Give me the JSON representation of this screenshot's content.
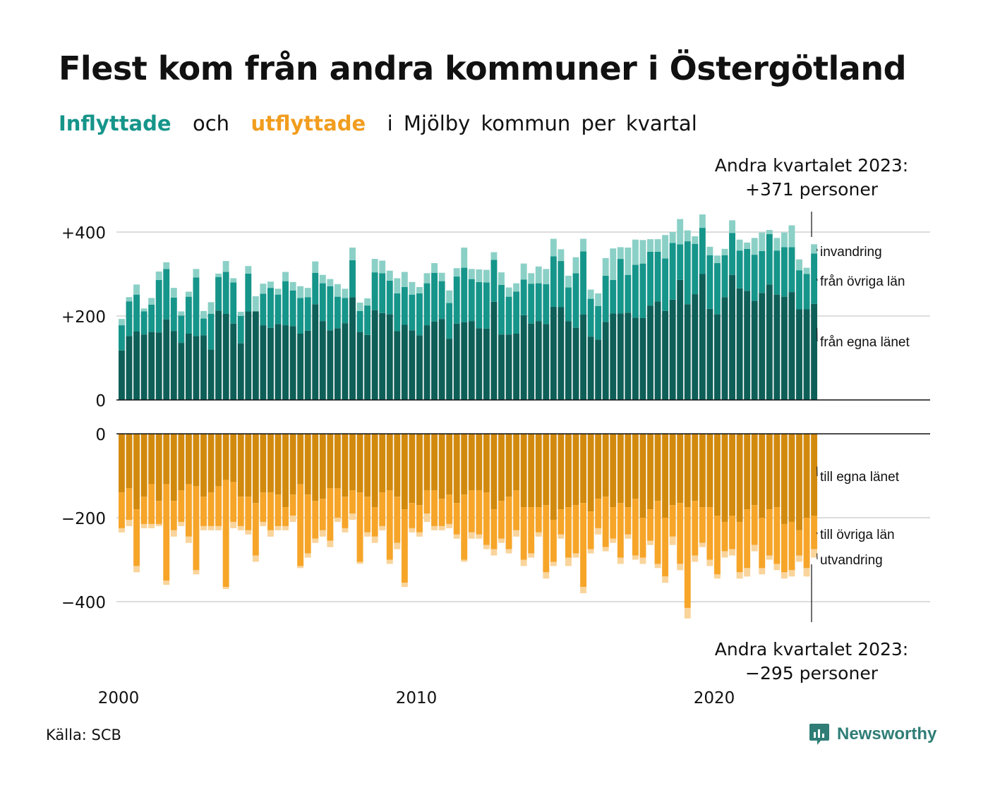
{
  "title": "Flest kom från andra kommuner i Östergötland",
  "subtitle": {
    "in_word": "Inflyttade",
    "mid": "och",
    "out_word": "utflyttade",
    "rest": "i Mjölby kommun per kvartal"
  },
  "annotation_top": {
    "line1": "Andra kvartalet 2023:",
    "line2": "+371 personer"
  },
  "annotation_bottom": {
    "line1": "Andra kvartalet 2023:",
    "line2": "−295 personer"
  },
  "source": "Källa: SCB",
  "brand": "Newsworthy",
  "colors": {
    "in_own": "#0e5f58",
    "in_other": "#16958a",
    "in_immig": "#8bd0c6",
    "out_own": "#d28a0e",
    "out_other": "#f6a529",
    "out_emig": "#f9d49b"
  },
  "chart_data": [
    {
      "type": "bar",
      "stacked": true,
      "title": "Inflyttade",
      "x_start": "2000 Q1",
      "x_end": "2023 Q2",
      "x_tick_labels": [
        "2000",
        "2010",
        "2020"
      ],
      "y_tick_labels": [
        "0",
        "+200",
        "+400"
      ],
      "ylim": [
        0,
        450
      ],
      "series_labels": [
        "från egna länet",
        "från övriga län",
        "invandring"
      ],
      "series": [
        {
          "name": "från egna länet",
          "values": [
            118,
            152,
            163,
            156,
            162,
            161,
            192,
            164,
            136,
            158,
            152,
            154,
            120,
            213,
            205,
            182,
            135,
            211,
            211,
            178,
            172,
            181,
            178,
            176,
            158,
            165,
            228,
            188,
            166,
            171,
            183,
            245,
            162,
            155,
            214,
            207,
            204,
            164,
            179,
            166,
            154,
            178,
            187,
            193,
            146,
            182,
            185,
            188,
            171,
            170,
            234,
            156,
            156,
            158,
            202,
            182,
            188,
            181,
            222,
            221,
            188,
            172,
            204,
            151,
            144,
            186,
            206,
            206,
            208,
            196,
            195,
            225,
            235,
            212,
            239,
            286,
            228,
            252,
            300,
            217,
            204,
            245,
            298,
            266,
            260,
            236,
            255,
            275,
            251,
            246,
            257,
            216,
            216,
            229
          ]
        },
        {
          "name": "från övriga län",
          "values": [
            60,
            83,
            88,
            55,
            65,
            125,
            120,
            80,
            65,
            88,
            140,
            40,
            85,
            80,
            100,
            98,
            65,
            90,
            0,
            75,
            95,
            70,
            105,
            85,
            85,
            80,
            75,
            90,
            105,
            75,
            60,
            88,
            50,
            70,
            90,
            95,
            80,
            90,
            90,
            85,
            100,
            100,
            116,
            90,
            85,
            112,
            130,
            100,
            110,
            110,
            100,
            118,
            90,
            100,
            85,
            95,
            90,
            95,
            120,
            110,
            80,
            130,
            150,
            90,
            80,
            110,
            80,
            130,
            90,
            126,
            130,
            128,
            118,
            125,
            135,
            85,
            150,
            120,
            110,
            128,
            122,
            100,
            100,
            90,
            100,
            110,
            100,
            120,
            105,
            118,
            107,
            93,
            84,
            120
          ]
        },
        {
          "name": "invandring",
          "values": [
            15,
            10,
            24,
            7,
            16,
            20,
            16,
            23,
            10,
            12,
            20,
            18,
            28,
            8,
            26,
            10,
            10,
            18,
            36,
            24,
            15,
            14,
            22,
            20,
            28,
            22,
            27,
            20,
            17,
            30,
            22,
            30,
            20,
            17,
            32,
            30,
            24,
            36,
            36,
            30,
            15,
            24,
            23,
            20,
            30,
            20,
            48,
            24,
            30,
            30,
            18,
            30,
            22,
            20,
            38,
            25,
            40,
            36,
            42,
            28,
            28,
            38,
            30,
            22,
            30,
            42,
            75,
            28,
            65,
            60,
            56,
            30,
            30,
            56,
            26,
            60,
            26,
            18,
            32,
            20,
            18,
            15,
            30,
            26,
            15,
            40,
            44,
            10,
            30,
            35,
            52,
            26,
            15,
            22
          ]
        }
      ]
    },
    {
      "type": "bar",
      "stacked": true,
      "title": "Utflyttade",
      "x_start": "2000 Q1",
      "x_end": "2023 Q2",
      "x_tick_labels": [
        "2000",
        "2010",
        "2020"
      ],
      "y_tick_labels": [
        "0",
        "−200",
        "−400"
      ],
      "ylim": [
        -450,
        0
      ],
      "series_labels": [
        "till egna länet",
        "till övriga län",
        "utvandring"
      ],
      "series": [
        {
          "name": "till egna länet",
          "values": [
            -140,
            -130,
            -180,
            -150,
            -120,
            -160,
            -120,
            -160,
            -135,
            -120,
            -125,
            -150,
            -140,
            -125,
            -110,
            -115,
            -150,
            -150,
            -165,
            -140,
            -140,
            -145,
            -175,
            -145,
            -120,
            -145,
            -160,
            -155,
            -130,
            -130,
            -150,
            -135,
            -140,
            -150,
            -175,
            -140,
            -135,
            -150,
            -180,
            -165,
            -170,
            -135,
            -135,
            -155,
            -145,
            -165,
            -145,
            -135,
            -135,
            -140,
            -180,
            -160,
            -150,
            -135,
            -175,
            -175,
            -175,
            -170,
            -205,
            -180,
            -175,
            -170,
            -165,
            -185,
            -155,
            -150,
            -175,
            -165,
            -175,
            -155,
            -200,
            -180,
            -160,
            -200,
            -170,
            -165,
            -175,
            -160,
            -175,
            -175,
            -195,
            -210,
            -195,
            -210,
            -180,
            -170,
            -200,
            -180,
            -175,
            -215,
            -210,
            -230,
            -200,
            -195
          ]
        },
        {
          "name": "till övriga län",
          "values": [
            -85,
            -75,
            -135,
            -65,
            -95,
            -55,
            -230,
            -70,
            -75,
            -125,
            -200,
            -70,
            -80,
            -95,
            -255,
            -95,
            -70,
            -80,
            -125,
            -70,
            -90,
            -75,
            -45,
            -50,
            -195,
            -140,
            -90,
            -75,
            -125,
            -70,
            -75,
            -55,
            -165,
            -85,
            -70,
            -80,
            -165,
            -110,
            -175,
            -60,
            -65,
            -55,
            -85,
            -65,
            -70,
            -75,
            -155,
            -100,
            -105,
            -125,
            -95,
            -90,
            -125,
            -95,
            -125,
            -110,
            -60,
            -160,
            -100,
            -60,
            -120,
            -115,
            -200,
            -90,
            -70,
            -120,
            -75,
            -130,
            -65,
            -135,
            -95,
            -75,
            -150,
            -140,
            -75,
            -145,
            -240,
            -130,
            -85,
            -125,
            -140,
            -70,
            -80,
            -120,
            -140,
            -95,
            -120,
            -110,
            -135,
            -115,
            -115,
            -60,
            -120,
            -80
          ]
        },
        {
          "name": "utvandring",
          "values": [
            -10,
            -15,
            -15,
            -10,
            -10,
            -5,
            -10,
            -15,
            -10,
            -15,
            -10,
            -10,
            -10,
            -10,
            -5,
            -15,
            -10,
            -10,
            -15,
            -10,
            -15,
            -10,
            -10,
            -15,
            -5,
            -10,
            -10,
            -15,
            -15,
            -10,
            -10,
            -15,
            -5,
            -10,
            -15,
            -10,
            -10,
            -15,
            -10,
            -10,
            -10,
            -20,
            -10,
            -10,
            -10,
            -10,
            -5,
            -15,
            -10,
            -10,
            -15,
            -10,
            -10,
            -15,
            -15,
            -10,
            -10,
            -15,
            -10,
            -10,
            -20,
            -10,
            -15,
            -10,
            -15,
            -10,
            -10,
            -15,
            -10,
            -10,
            -15,
            -10,
            -10,
            -15,
            -20,
            -15,
            -25,
            -15,
            -10,
            -15,
            -10,
            -15,
            -15,
            -15,
            -20,
            -15,
            -15,
            -10,
            -15,
            -15,
            -15,
            -15,
            -20,
            -20
          ]
        }
      ]
    }
  ]
}
